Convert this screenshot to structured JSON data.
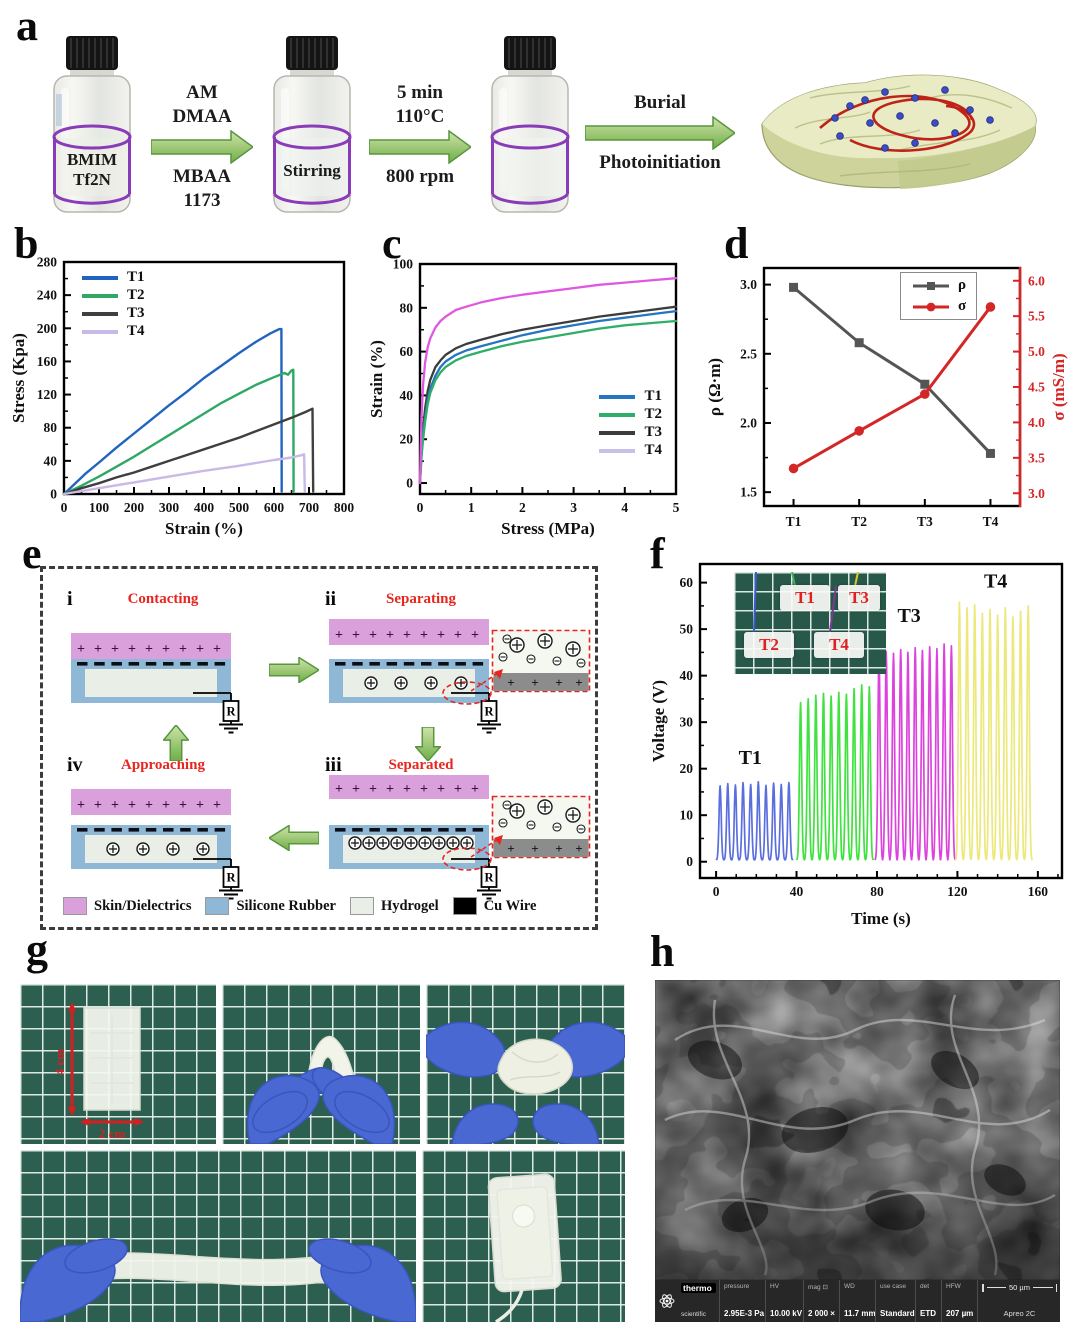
{
  "figure": {
    "panel_labels": {
      "a": "a",
      "b": "b",
      "c": "c",
      "d": "d",
      "e": "e",
      "f": "f",
      "g": "g",
      "h": "h"
    }
  },
  "panel_a": {
    "vial1_line1": "BMIM",
    "vial1_line2": "Tf2N",
    "vial2_label": "Stirring",
    "step1_top1": "AM",
    "step1_top2": "DMAA",
    "step1_bot1": "MBAA",
    "step1_bot2": "1173",
    "step2_top1": "5 min",
    "step2_top2": "110°C",
    "step2_bot1": "800 rpm",
    "step3_top1": "Burial",
    "step3_bot1": "Photoinitiation"
  },
  "panel_e": {
    "states": [
      {
        "num": "i",
        "title": "Contacting",
        "plus": 9,
        "minus": 9,
        "ions": 0,
        "inset": false
      },
      {
        "num": "ii",
        "title": "Separating",
        "plus": 9,
        "minus": 9,
        "ions": 4,
        "inset": true
      },
      {
        "num": "iii",
        "title": "Separated",
        "plus": 9,
        "minus": 9,
        "ions": 9,
        "inset": true
      },
      {
        "num": "iv",
        "title": "Approaching",
        "plus": 9,
        "minus": 9,
        "ions": 4,
        "inset": false
      }
    ],
    "resistor_label": "R",
    "legend": [
      {
        "label": "Skin/Dielectrics",
        "color": "#d9a0dc"
      },
      {
        "label": "Silicone Rubber",
        "color": "#8fb7d6"
      },
      {
        "label": "Hydrogel",
        "color": "#e9efe7"
      },
      {
        "label": "Cu Wire",
        "color": "#000000"
      }
    ]
  },
  "panel_f_inset": {
    "labels": [
      "T1",
      "T3",
      "T2",
      "T4"
    ]
  },
  "panel_g": {
    "dim_vertical": "4 cm",
    "dim_horizontal": "2 cm"
  },
  "panel_h": {
    "brand_top": "thermo",
    "brand_bottom": "scientific",
    "columns": [
      {
        "k": "pressure",
        "v": "2.95E-3 Pa"
      },
      {
        "k": "HV",
        "v": "10.00 kV"
      },
      {
        "k": "mag ⊡",
        "v": "2 000 ×"
      },
      {
        "k": "WD",
        "v": "11.7 mm"
      },
      {
        "k": "use case",
        "v": "Standard"
      },
      {
        "k": "det",
        "v": "ETD"
      },
      {
        "k": "HFW",
        "v": "207 µm"
      }
    ],
    "scale_label": "50 µm",
    "instrument": "Apreo 2C"
  },
  "chart_data": [
    {
      "id": "b",
      "type": "line",
      "title": "",
      "xlabel": "Strain (%)",
      "ylabel": "Stress (Kpa)",
      "xlim": [
        0,
        800
      ],
      "ylim": [
        0,
        280
      ],
      "xticks": [
        0,
        100,
        200,
        300,
        400,
        500,
        600,
        700,
        800
      ],
      "yticks": [
        0,
        40,
        80,
        120,
        160,
        200,
        240,
        280
      ],
      "xminor": 50,
      "yminor": 20,
      "grid": false,
      "legend_pos": "top-left",
      "legend": [
        {
          "label": "T1",
          "color": "#2064c0"
        },
        {
          "label": "T2",
          "color": "#2fa865"
        },
        {
          "label": "T3",
          "color": "#3f3f3f"
        },
        {
          "label": "T4",
          "color": "#c9b9e6"
        }
      ],
      "series": [
        {
          "name": "T1",
          "color": "#2064c0",
          "points": [
            [
              0,
              0
            ],
            [
              30,
              12
            ],
            [
              60,
              24
            ],
            [
              100,
              38
            ],
            [
              150,
              56
            ],
            [
              200,
              73
            ],
            [
              250,
              90
            ],
            [
              300,
              107
            ],
            [
              350,
              123
            ],
            [
              400,
              140
            ],
            [
              450,
              155
            ],
            [
              500,
              170
            ],
            [
              550,
              184
            ],
            [
              590,
              194
            ],
            [
              615,
              199
            ],
            [
              621,
              199
            ],
            [
              622,
              3
            ]
          ]
        },
        {
          "name": "T2",
          "color": "#2fa865",
          "points": [
            [
              0,
              0
            ],
            [
              50,
              10
            ],
            [
              100,
              21
            ],
            [
              150,
              33
            ],
            [
              200,
              45
            ],
            [
              250,
              58
            ],
            [
              300,
              71
            ],
            [
              350,
              84
            ],
            [
              400,
              97
            ],
            [
              450,
              110
            ],
            [
              500,
              121
            ],
            [
              550,
              132
            ],
            [
              600,
              141
            ],
            [
              630,
              146
            ],
            [
              640,
              144
            ],
            [
              650,
              149
            ],
            [
              655,
              150
            ],
            [
              656,
              3
            ]
          ]
        },
        {
          "name": "T3",
          "color": "#3f3f3f",
          "points": [
            [
              0,
              0
            ],
            [
              50,
              7
            ],
            [
              100,
              13
            ],
            [
              150,
              20
            ],
            [
              200,
              26
            ],
            [
              250,
              33
            ],
            [
              300,
              40
            ],
            [
              350,
              47
            ],
            [
              400,
              54
            ],
            [
              450,
              61
            ],
            [
              500,
              68
            ],
            [
              550,
              76
            ],
            [
              600,
              84
            ],
            [
              650,
              92
            ],
            [
              690,
              99
            ],
            [
              710,
              103
            ],
            [
              712,
              3
            ]
          ]
        },
        {
          "name": "T4",
          "color": "#c9b9e6",
          "points": [
            [
              0,
              0
            ],
            [
              100,
              7
            ],
            [
              200,
              14
            ],
            [
              300,
              21
            ],
            [
              400,
              28
            ],
            [
              500,
              34
            ],
            [
              600,
              41
            ],
            [
              650,
              44
            ],
            [
              680,
              47
            ],
            [
              686,
              48
            ],
            [
              688,
              3
            ]
          ]
        }
      ]
    },
    {
      "id": "c",
      "type": "line",
      "title": "",
      "xlabel": "Stress (MPa)",
      "ylabel": "Strain (%)",
      "xlim": [
        0,
        5
      ],
      "ylim": [
        -5,
        100
      ],
      "xticks": [
        0,
        1,
        2,
        3,
        4,
        5
      ],
      "yticks": [
        0,
        20,
        40,
        60,
        80,
        100
      ],
      "xminor": 0.5,
      "yminor": 10,
      "grid": false,
      "legend_pos": "bottom-right",
      "legend": [
        {
          "label": "T1",
          "color": "#2575c0"
        },
        {
          "label": "T2",
          "color": "#2fae68"
        },
        {
          "label": "T3",
          "color": "#3c3c3c"
        },
        {
          "label": "T4",
          "color": "#c9c0e8"
        }
      ],
      "series": [
        {
          "name": "T3",
          "color": "#3c3c3c",
          "points": [
            [
              0,
              0
            ],
            [
              0.03,
              15
            ],
            [
              0.06,
              25
            ],
            [
              0.1,
              34
            ],
            [
              0.15,
              42
            ],
            [
              0.2,
              47
            ],
            [
              0.3,
              53
            ],
            [
              0.4,
              56
            ],
            [
              0.5,
              58.5
            ],
            [
              0.7,
              61.5
            ],
            [
              0.9,
              63.5
            ],
            [
              1.2,
              65.5
            ],
            [
              1.6,
              68
            ],
            [
              2,
              70
            ],
            [
              2.5,
              72
            ],
            [
              3,
              74
            ],
            [
              3.5,
              76
            ],
            [
              4,
              77.5
            ],
            [
              4.5,
              79
            ],
            [
              5,
              80.5
            ]
          ]
        },
        {
          "name": "T1",
          "color": "#2575c0",
          "points": [
            [
              0,
              0
            ],
            [
              0.03,
              13
            ],
            [
              0.06,
              22
            ],
            [
              0.1,
              30
            ],
            [
              0.15,
              38
            ],
            [
              0.2,
              43
            ],
            [
              0.3,
              49
            ],
            [
              0.4,
              53
            ],
            [
              0.5,
              55.5
            ],
            [
              0.7,
              58.5
            ],
            [
              0.9,
              60.5
            ],
            [
              1.2,
              62.5
            ],
            [
              1.6,
              65
            ],
            [
              2,
              67.5
            ],
            [
              2.5,
              70
            ],
            [
              3,
              72
            ],
            [
              3.5,
              74
            ],
            [
              4,
              75.5
            ],
            [
              4.5,
              77
            ],
            [
              5,
              78.5
            ]
          ]
        },
        {
          "name": "T2",
          "color": "#2fae68",
          "points": [
            [
              0,
              0
            ],
            [
              0.03,
              12
            ],
            [
              0.06,
              20
            ],
            [
              0.1,
              28
            ],
            [
              0.15,
              36
            ],
            [
              0.2,
              41
            ],
            [
              0.3,
              47
            ],
            [
              0.4,
              50.5
            ],
            [
              0.5,
              53
            ],
            [
              0.7,
              56
            ],
            [
              0.9,
              58
            ],
            [
              1.2,
              60
            ],
            [
              1.6,
              62.5
            ],
            [
              2,
              64.5
            ],
            [
              2.5,
              66.5
            ],
            [
              3,
              68.5
            ],
            [
              3.5,
              70.5
            ],
            [
              4,
              72
            ],
            [
              4.5,
              73
            ],
            [
              5,
              74
            ]
          ]
        },
        {
          "name": "T4",
          "color": "#e058e0",
          "points": [
            [
              0,
              0
            ],
            [
              0.03,
              30
            ],
            [
              0.06,
              45
            ],
            [
              0.1,
              55
            ],
            [
              0.15,
              62
            ],
            [
              0.2,
              66
            ],
            [
              0.3,
              71
            ],
            [
              0.4,
              74
            ],
            [
              0.5,
              76
            ],
            [
              0.7,
              79
            ],
            [
              0.9,
              80.5
            ],
            [
              1.2,
              82.5
            ],
            [
              1.6,
              84.5
            ],
            [
              2,
              86
            ],
            [
              2.5,
              87.5
            ],
            [
              3,
              89
            ],
            [
              3.5,
              90.5
            ],
            [
              4,
              91.5
            ],
            [
              4.5,
              92.5
            ],
            [
              5,
              93.5
            ]
          ]
        }
      ]
    },
    {
      "id": "d",
      "type": "dual-line",
      "categories": [
        "T1",
        "T2",
        "T3",
        "T4"
      ],
      "left": {
        "label": "ρ (Ω·m)",
        "lim": [
          1.4,
          3.12
        ],
        "ticks": [
          1.5,
          2.0,
          2.5,
          3.0
        ],
        "tick_labels": [
          "1.5",
          "2.0",
          "2.5",
          "3.0"
        ],
        "minor": [
          1.75,
          2.25,
          2.75
        ],
        "color": "#555555",
        "values": [
          2.98,
          2.58,
          2.28,
          1.78
        ],
        "marker": "square"
      },
      "right": {
        "label": "σ (mS/m)",
        "lim": [
          2.82,
          6.18
        ],
        "ticks": [
          3.0,
          3.5,
          4.0,
          4.5,
          5.0,
          5.5,
          6.0
        ],
        "tick_labels": [
          "3.0",
          "3.5",
          "4.0",
          "4.5",
          "5.0",
          "5.5",
          "6.0"
        ],
        "minor": [
          3.25,
          3.75,
          4.25,
          4.75,
          5.25,
          5.75
        ],
        "color": "#d42626",
        "values": [
          3.35,
          3.88,
          4.4,
          5.63
        ],
        "marker": "circle"
      },
      "legend": [
        {
          "label": "ρ",
          "color": "#555555",
          "marker": "square"
        },
        {
          "label": "σ",
          "color": "#d42626",
          "marker": "circle"
        }
      ]
    },
    {
      "id": "f",
      "type": "pulse",
      "xlabel": "Time (s)",
      "ylabel": "Voltage (V)",
      "xlim": [
        -8,
        172
      ],
      "ylim": [
        -3.5,
        64
      ],
      "xticks": [
        0,
        40,
        80,
        120,
        160
      ],
      "yticks": [
        0,
        10,
        20,
        30,
        40,
        50,
        60
      ],
      "xminor": 10,
      "yminor": 5,
      "groups": [
        {
          "name": "T1",
          "color": "#5b6ede",
          "start": 2,
          "period": 3.8,
          "peaks": [
            16.3,
            16.8,
            16.5,
            17.0,
            16.6,
            17.2,
            16.4,
            16.9,
            16.6,
            17.0
          ],
          "label_x": 17,
          "label_y": 21
        },
        {
          "name": "T2",
          "color": "#3fe23f",
          "start": 42,
          "period": 3.8,
          "peaks": [
            34.2,
            35.0,
            35.8,
            36.2,
            35.6,
            36.4,
            36.0,
            37.2,
            38.0,
            37.6
          ],
          "label_x": 57,
          "label_y": 43
        },
        {
          "name": "T3",
          "color": "#dc43dc",
          "start": 81,
          "period": 3.6,
          "peaks": [
            44.3,
            45.2,
            44.8,
            45.6,
            45.0,
            46.0,
            45.4,
            46.2,
            45.8,
            46.8,
            46.4
          ],
          "label_x": 96,
          "label_y": 51.5
        },
        {
          "name": "T4",
          "color": "#ece87b",
          "start": 121,
          "period": 3.8,
          "peaks": [
            55.8,
            54.6,
            55.2,
            53.4,
            54.2,
            53.0,
            54.6,
            52.6,
            53.8,
            55.0
          ],
          "label_x": 139,
          "label_y": 59
        }
      ]
    }
  ]
}
